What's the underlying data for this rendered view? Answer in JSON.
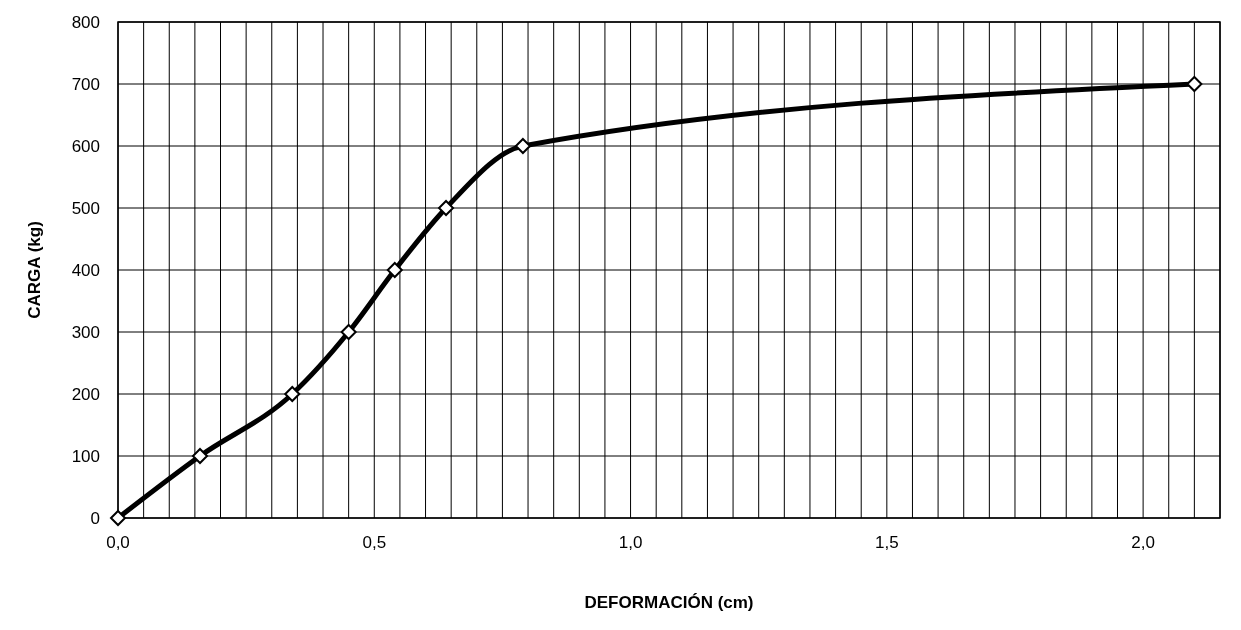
{
  "chart_data": {
    "type": "line",
    "xlabel": "DEFORMACIÓN (cm)",
    "ylabel": "CARGA (kg)",
    "x": [
      0,
      0.16,
      0.34,
      0.45,
      0.54,
      0.64,
      0.79,
      2.1
    ],
    "series": [
      {
        "color": "#000000",
        "values": [
          0,
          100,
          200,
          300,
          400,
          500,
          600,
          700
        ]
      }
    ],
    "xlim": [
      0,
      2.15
    ],
    "xticks": [
      {
        "value": 0,
        "label": "0,0"
      },
      {
        "value": 0.05,
        "label": null
      },
      {
        "value": 0.1,
        "label": null
      },
      {
        "value": 0.15,
        "label": null
      },
      {
        "value": 0.2,
        "label": null
      },
      {
        "value": 0.25,
        "label": null
      },
      {
        "value": 0.3,
        "label": null
      },
      {
        "value": 0.35,
        "label": null
      },
      {
        "value": 0.4,
        "label": null
      },
      {
        "value": 0.45,
        "label": null
      },
      {
        "value": 0.5,
        "label": "0,5"
      },
      {
        "value": 0.55,
        "label": null
      },
      {
        "value": 0.6,
        "label": null
      },
      {
        "value": 0.65,
        "label": null
      },
      {
        "value": 0.7,
        "label": null
      },
      {
        "value": 0.75,
        "label": null
      },
      {
        "value": 0.8,
        "label": null
      },
      {
        "value": 0.85,
        "label": null
      },
      {
        "value": 0.9,
        "label": null
      },
      {
        "value": 0.95,
        "label": null
      },
      {
        "value": 1,
        "label": "1,0"
      },
      {
        "value": 1.05,
        "label": null
      },
      {
        "value": 1.1,
        "label": null
      },
      {
        "value": 1.15,
        "label": null
      },
      {
        "value": 1.2,
        "label": null
      },
      {
        "value": 1.25,
        "label": null
      },
      {
        "value": 1.3,
        "label": null
      },
      {
        "value": 1.35,
        "label": null
      },
      {
        "value": 1.4,
        "label": null
      },
      {
        "value": 1.45,
        "label": null
      },
      {
        "value": 1.5,
        "label": "1,5"
      },
      {
        "value": 1.55,
        "label": null
      },
      {
        "value": 1.6,
        "label": null
      },
      {
        "value": 1.65,
        "label": null
      },
      {
        "value": 1.7,
        "label": null
      },
      {
        "value": 1.75,
        "label": null
      },
      {
        "value": 1.8,
        "label": null
      },
      {
        "value": 1.85,
        "label": null
      },
      {
        "value": 1.9,
        "label": null
      },
      {
        "value": 1.95,
        "label": null
      },
      {
        "value": 2,
        "label": "2,0"
      },
      {
        "value": 2.05,
        "label": null
      },
      {
        "value": 2.1,
        "label": null
      },
      {
        "value": 2.15,
        "label": null
      }
    ],
    "ylim": [
      0,
      800
    ],
    "yticks": [
      0,
      100,
      200,
      300,
      400,
      500,
      600,
      700,
      800
    ],
    "grid": true,
    "marker": "diamond",
    "line_style": "solid"
  }
}
